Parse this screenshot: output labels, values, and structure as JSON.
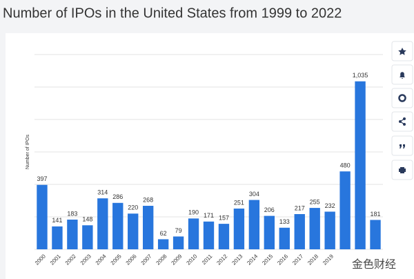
{
  "chart_data": {
    "type": "bar",
    "title": "Number of IPOs in the United States from 1999 to 2022",
    "y_label": "Number of IPOs",
    "categories": [
      "2000",
      "2001",
      "2002",
      "2003",
      "2004",
      "2005",
      "2006",
      "2007",
      "2008",
      "2009",
      "2010",
      "2011",
      "2012",
      "2013",
      "2014",
      "2015",
      "2016",
      "2017",
      "2018",
      "2019",
      null,
      null,
      null
    ],
    "values": [
      397,
      141,
      183,
      148,
      314,
      286,
      220,
      268,
      62,
      79,
      190,
      171,
      157,
      251,
      304,
      206,
      133,
      217,
      255,
      232,
      480,
      1035,
      181
    ],
    "value_labels": [
      "397",
      "141",
      "183",
      "148",
      "314",
      "286",
      "220",
      "268",
      "62",
      "79",
      "190",
      "171",
      "157",
      "251",
      "304",
      "206",
      "133",
      "217",
      "255",
      "232",
      "480",
      "1,035",
      "181"
    ],
    "color": "#2876dd",
    "ylim": [
      0,
      1200
    ],
    "yticks": [
      0,
      200,
      400,
      600,
      800,
      1000,
      1200
    ],
    "grid": true,
    "watermark": "金色财经"
  }
}
